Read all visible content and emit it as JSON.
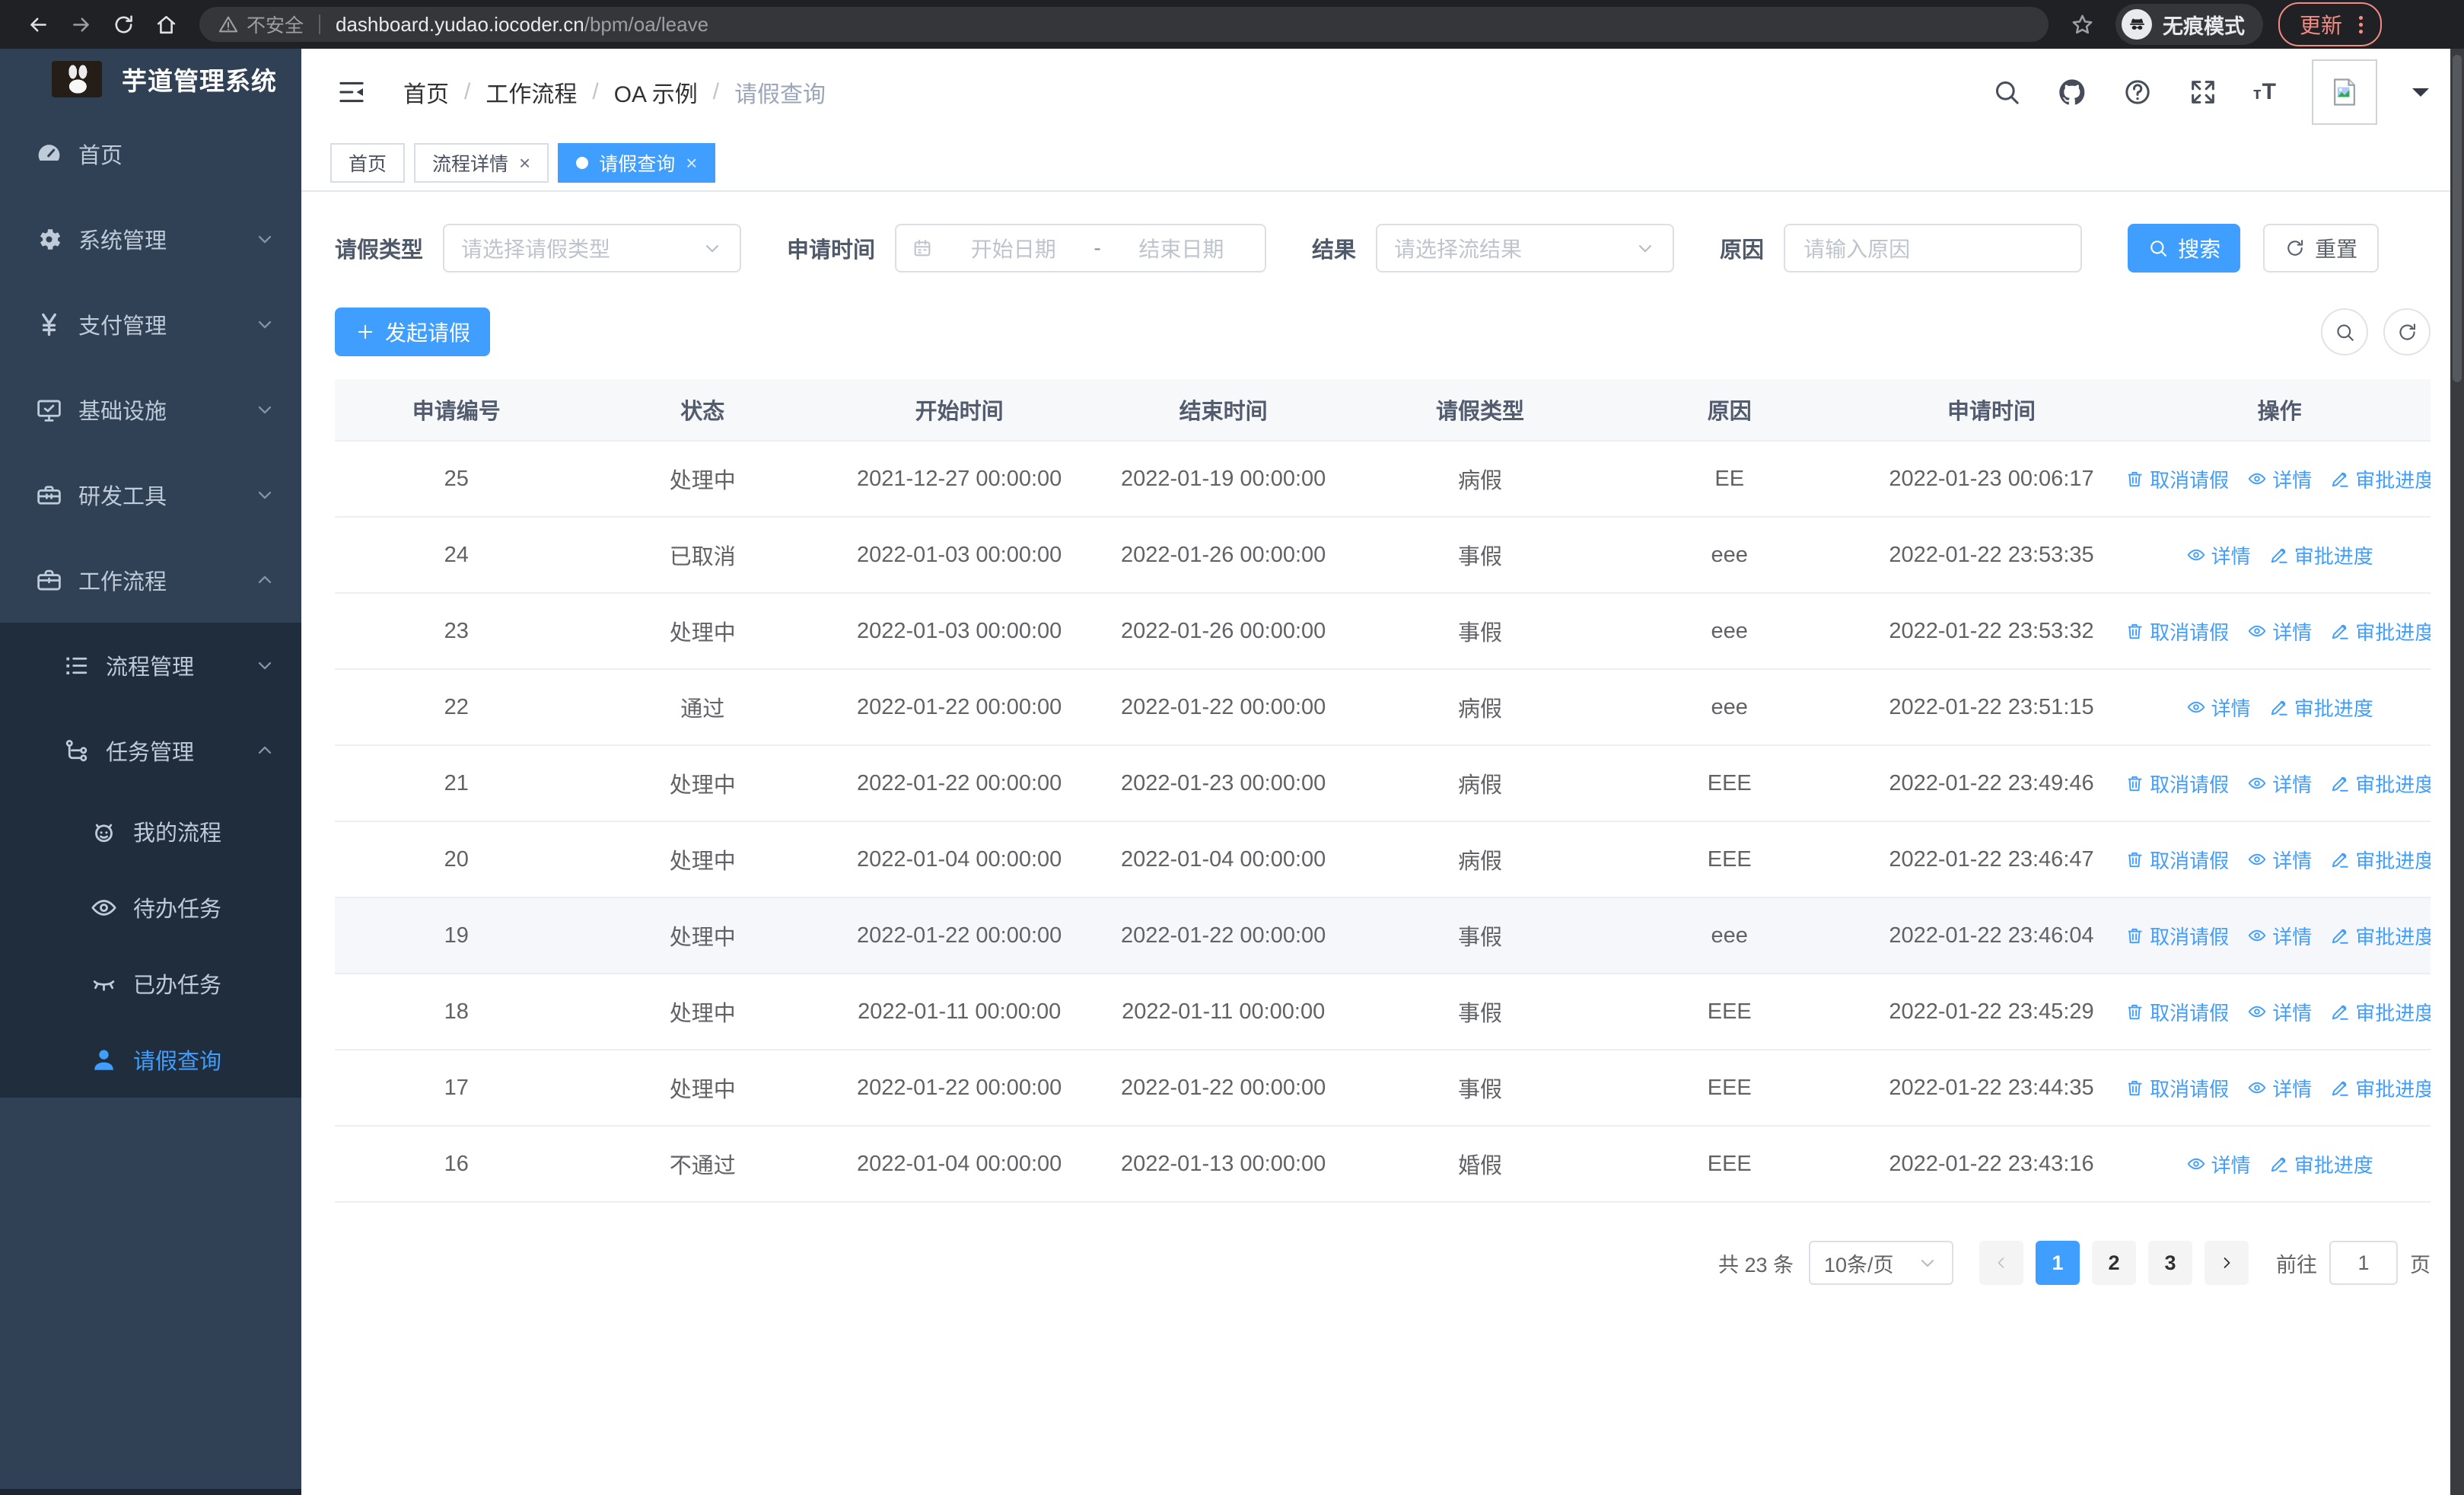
{
  "browser": {
    "security_label": "不安全",
    "url_host": "dashboard.yudao.iocoder.cn",
    "url_path": "/bpm/oa/leave",
    "incognito_label": "无痕模式",
    "update_label": "更新"
  },
  "sidebar": {
    "title": "芋道管理系统",
    "top_menu": [
      {
        "name": "home",
        "label": "首页",
        "icon": "dashboard-icon"
      },
      {
        "name": "system-management",
        "label": "系统管理",
        "icon": "gear-icon",
        "arrow": "down"
      },
      {
        "name": "payment-management",
        "label": "支付管理",
        "icon": "yen-icon",
        "arrow": "down"
      },
      {
        "name": "infrastructure",
        "label": "基础设施",
        "icon": "monitor-icon",
        "arrow": "down"
      },
      {
        "name": "dev-tools",
        "label": "研发工具",
        "icon": "toolbox-icon",
        "arrow": "down"
      },
      {
        "name": "workflow",
        "label": "工作流程",
        "icon": "briefcase-icon",
        "arrow": "up"
      }
    ],
    "sub_menu": [
      {
        "name": "process-management",
        "label": "流程管理",
        "icon": "list-icon",
        "arrow": "down",
        "level": 1
      },
      {
        "name": "task-management",
        "label": "任务管理",
        "icon": "tree-icon",
        "arrow": "up",
        "level": 1
      },
      {
        "name": "my-process",
        "label": "我的流程",
        "icon": "robot-icon",
        "level": 2
      },
      {
        "name": "todo-tasks",
        "label": "待办任务",
        "icon": "eye-icon",
        "level": 2
      },
      {
        "name": "done-tasks",
        "label": "已办任务",
        "icon": "eye-closed-icon",
        "level": 2
      },
      {
        "name": "leave-query",
        "label": "请假查询",
        "icon": "user-icon",
        "level": 2,
        "active": true
      }
    ]
  },
  "header": {
    "breadcrumb": [
      "首页",
      "工作流程",
      "OA 示例",
      "请假查询"
    ],
    "separator": "/"
  },
  "tabs": [
    {
      "name": "tab-home",
      "label": "首页"
    },
    {
      "name": "tab-process-detail",
      "label": "流程详情",
      "closable": true
    },
    {
      "name": "tab-leave-query",
      "label": "请假查询",
      "closable": true,
      "active": true
    }
  ],
  "filters": {
    "leave_type": {
      "label": "请假类型",
      "placeholder": "请选择请假类型"
    },
    "apply_time": {
      "label": "申请时间",
      "start_placeholder": "开始日期",
      "separator": "-",
      "end_placeholder": "结束日期"
    },
    "result": {
      "label": "结果",
      "placeholder": "请选择流结果"
    },
    "reason": {
      "label": "原因",
      "placeholder": "请输入原因"
    },
    "search_label": "搜索",
    "reset_label": "重置"
  },
  "toolbar": {
    "create_label": "发起请假"
  },
  "table": {
    "columns": [
      "申请编号",
      "状态",
      "开始时间",
      "结束时间",
      "请假类型",
      "原因",
      "申请时间",
      "操作"
    ],
    "action_defs": {
      "cancel": {
        "name": "cancel-leave-link",
        "label": "取消请假",
        "icon": "trash-icon"
      },
      "detail": {
        "name": "detail-link",
        "label": "详情",
        "icon": "view-icon"
      },
      "progress": {
        "name": "approval-progress-link",
        "label": "审批进度",
        "icon": "edit-icon"
      }
    },
    "rows": [
      {
        "id": "25",
        "status": "处理中",
        "start_time": "2021-12-27 00:00:00",
        "end_time": "2022-01-19 00:00:00",
        "leave_type": "病假",
        "reason": "EE",
        "apply_time": "2022-01-23 00:06:17",
        "actions": [
          "cancel",
          "detail",
          "progress"
        ]
      },
      {
        "id": "24",
        "status": "已取消",
        "start_time": "2022-01-03 00:00:00",
        "end_time": "2022-01-26 00:00:00",
        "leave_type": "事假",
        "reason": "eee",
        "apply_time": "2022-01-22 23:53:35",
        "actions": [
          "detail",
          "progress"
        ]
      },
      {
        "id": "23",
        "status": "处理中",
        "start_time": "2022-01-03 00:00:00",
        "end_time": "2022-01-26 00:00:00",
        "leave_type": "事假",
        "reason": "eee",
        "apply_time": "2022-01-22 23:53:32",
        "actions": [
          "cancel",
          "detail",
          "progress"
        ]
      },
      {
        "id": "22",
        "status": "通过",
        "start_time": "2022-01-22 00:00:00",
        "end_time": "2022-01-22 00:00:00",
        "leave_type": "病假",
        "reason": "eee",
        "apply_time": "2022-01-22 23:51:15",
        "actions": [
          "detail",
          "progress"
        ]
      },
      {
        "id": "21",
        "status": "处理中",
        "start_time": "2022-01-22 00:00:00",
        "end_time": "2022-01-23 00:00:00",
        "leave_type": "病假",
        "reason": "EEE",
        "apply_time": "2022-01-22 23:49:46",
        "actions": [
          "cancel",
          "detail",
          "progress"
        ]
      },
      {
        "id": "20",
        "status": "处理中",
        "start_time": "2022-01-04 00:00:00",
        "end_time": "2022-01-04 00:00:00",
        "leave_type": "病假",
        "reason": "EEE",
        "apply_time": "2022-01-22 23:46:47",
        "actions": [
          "cancel",
          "detail",
          "progress"
        ]
      },
      {
        "id": "19",
        "status": "处理中",
        "start_time": "2022-01-22 00:00:00",
        "end_time": "2022-01-22 00:00:00",
        "leave_type": "事假",
        "reason": "eee",
        "apply_time": "2022-01-22 23:46:04",
        "actions": [
          "cancel",
          "detail",
          "progress"
        ],
        "highlighted": true
      },
      {
        "id": "18",
        "status": "处理中",
        "start_time": "2022-01-11 00:00:00",
        "end_time": "2022-01-11 00:00:00",
        "leave_type": "事假",
        "reason": "EEE",
        "apply_time": "2022-01-22 23:45:29",
        "actions": [
          "cancel",
          "detail",
          "progress"
        ]
      },
      {
        "id": "17",
        "status": "处理中",
        "start_time": "2022-01-22 00:00:00",
        "end_time": "2022-01-22 00:00:00",
        "leave_type": "事假",
        "reason": "EEE",
        "apply_time": "2022-01-22 23:44:35",
        "actions": [
          "cancel",
          "detail",
          "progress"
        ]
      },
      {
        "id": "16",
        "status": "不通过",
        "start_time": "2022-01-04 00:00:00",
        "end_time": "2022-01-13 00:00:00",
        "leave_type": "婚假",
        "reason": "EEE",
        "apply_time": "2022-01-22 23:43:16",
        "actions": [
          "detail",
          "progress"
        ]
      }
    ]
  },
  "pagination": {
    "total_label": "共 23 条",
    "page_size_label": "10条/页",
    "pages": [
      "1",
      "2",
      "3"
    ],
    "active_page": "1",
    "jump_label": "前往",
    "jump_value": "1",
    "jump_unit": "页"
  }
}
